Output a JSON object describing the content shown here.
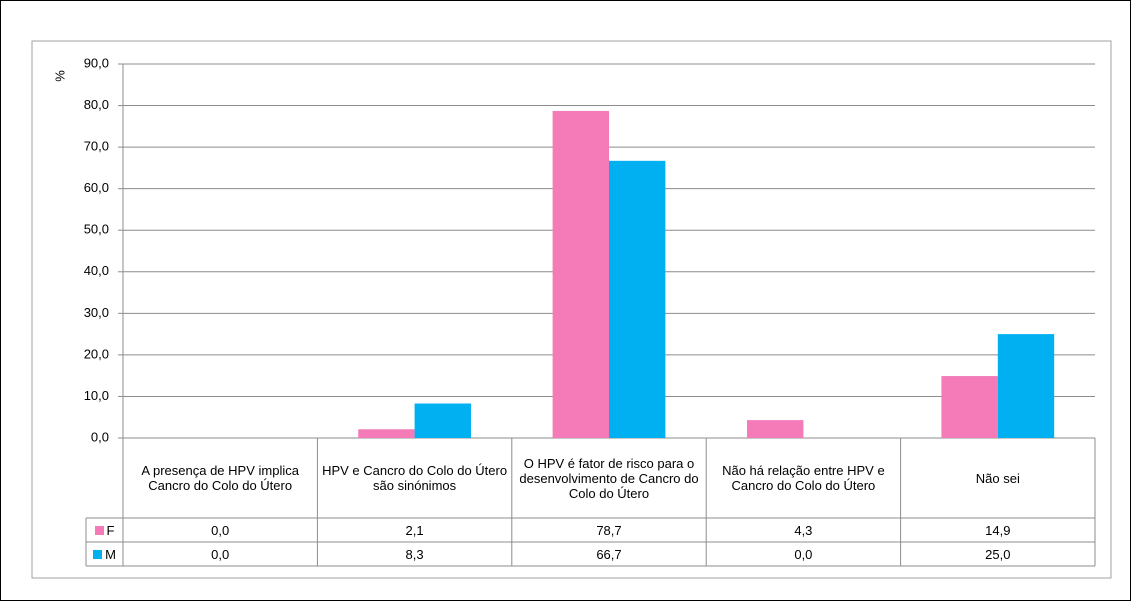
{
  "chart_data": {
    "type": "bar",
    "ylabel": "%",
    "categories": [
      "A presença de HPV implica Cancro do Colo do Útero",
      "HPV e Cancro do Colo do Útero são sinónimos",
      "O HPV é fator de risco para o desenvolvimento de Cancro do Colo do Útero",
      "Não há relação entre HPV e Cancro do Colo do Útero",
      "Não sei"
    ],
    "series": [
      {
        "name": "F",
        "color": "#f47ab8",
        "values": [
          0,
          2.1,
          78.7,
          4.3,
          14.9
        ],
        "value_labels": [
          "0,0",
          "2,1",
          "78,7",
          "4,3",
          "14,9"
        ]
      },
      {
        "name": "M",
        "color": "#00b0f0",
        "values": [
          0,
          8.3,
          66.7,
          0,
          25.0
        ],
        "value_labels": [
          "0,0",
          "8,3",
          "66,7",
          "0,0",
          "25,0"
        ]
      }
    ],
    "ylim": [
      0,
      90
    ],
    "yticks": [
      {
        "value": 0,
        "label": "0,0"
      },
      {
        "value": 10,
        "label": "10,0"
      },
      {
        "value": 20,
        "label": "20,0"
      },
      {
        "value": 30,
        "label": "30,0"
      },
      {
        "value": 40,
        "label": "40,0"
      },
      {
        "value": 50,
        "label": "50,0"
      },
      {
        "value": 60,
        "label": "60,0"
      },
      {
        "value": 70,
        "label": "70,0"
      },
      {
        "value": 80,
        "label": "80,0"
      },
      {
        "value": 90,
        "label": "90,0"
      }
    ],
    "grid": true
  }
}
